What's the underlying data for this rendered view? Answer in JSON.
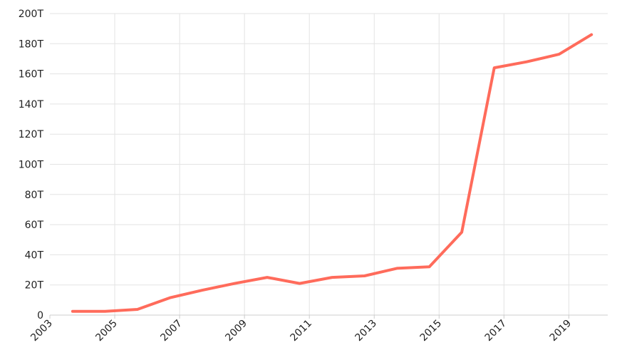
{
  "chart_data": {
    "type": "line",
    "title": "",
    "xlabel": "",
    "ylabel": "",
    "x_ticks": [
      "2003",
      "2005",
      "2007",
      "2009",
      "2011",
      "2013",
      "2015",
      "2017",
      "2019"
    ],
    "y_ticks": [
      "0",
      "20T",
      "40T",
      "60T",
      "80T",
      "100T",
      "120T",
      "140T",
      "160T",
      "180T",
      "200T"
    ],
    "xlim": [
      2003,
      2020.2
    ],
    "ylim": [
      0,
      200
    ],
    "y_unit": "T",
    "grid": true,
    "legend": "none",
    "series": [
      {
        "color": "#ff6b5b",
        "x": [
          2003.7,
          2004.7,
          2005.7,
          2006.7,
          2007.7,
          2008.7,
          2009.7,
          2010.7,
          2011.7,
          2012.7,
          2013.7,
          2014.7,
          2015.7,
          2016.7,
          2017.7,
          2018.7,
          2019.7
        ],
        "y": [
          2.5,
          2.5,
          3.8,
          11.5,
          16.5,
          21,
          25,
          21,
          25,
          26,
          31,
          32,
          55,
          164,
          168,
          173,
          186
        ]
      }
    ]
  }
}
